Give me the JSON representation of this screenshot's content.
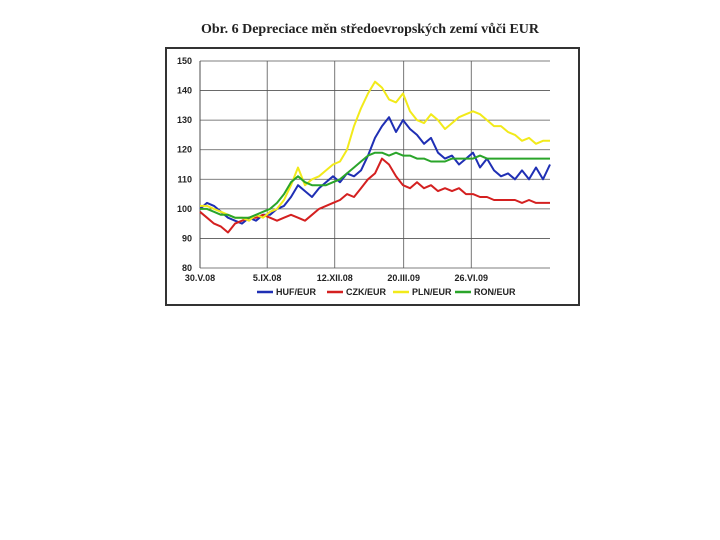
{
  "chart_data": {
    "type": "line",
    "title": "Obr. 6 Depreciace měn středoevropských zemí vůči EUR",
    "xlabel": "",
    "ylabel": "",
    "ylim": [
      80,
      150
    ],
    "yticks": [
      80,
      90,
      100,
      110,
      120,
      130,
      140,
      150
    ],
    "xlim": [
      0,
      100
    ],
    "xticks": [
      {
        "label": "30.V.08",
        "x": 0
      },
      {
        "label": "5.IX.08",
        "x": 19.2
      },
      {
        "label": "12.XII.08",
        "x": 38.5
      },
      {
        "label": "20.III.09",
        "x": 58.2
      },
      {
        "label": "26.VI.09",
        "x": 77.5
      }
    ],
    "grid": true,
    "legend_position": "bottom",
    "series": [
      {
        "name": "HUF/EUR",
        "color": "#1f2fb4",
        "x": [
          0,
          2,
          4,
          6,
          8,
          10,
          12,
          14,
          16,
          18,
          20,
          22,
          24,
          26,
          28,
          30,
          32,
          34,
          36,
          38,
          40,
          42,
          44,
          46,
          48,
          50,
          52,
          54,
          56,
          58,
          60,
          62,
          64,
          66,
          68,
          70,
          72,
          74,
          76,
          78,
          80,
          82,
          84,
          86,
          88,
          90,
          92,
          94,
          96,
          98,
          100
        ],
        "y": [
          100,
          102,
          101,
          99,
          97,
          96,
          95,
          97,
          96,
          98,
          98,
          100,
          101,
          104,
          108,
          106,
          104,
          107,
          109,
          111,
          109,
          112,
          111,
          113,
          118,
          124,
          128,
          131,
          126,
          130,
          127,
          125,
          122,
          124,
          119,
          117,
          118,
          115,
          117,
          119,
          114,
          117,
          113,
          111,
          112,
          110,
          113,
          110,
          114,
          110,
          115
        ]
      },
      {
        "name": "CZK/EUR",
        "color": "#d42020",
        "x": [
          0,
          2,
          4,
          6,
          8,
          10,
          12,
          14,
          16,
          18,
          20,
          22,
          24,
          26,
          28,
          30,
          32,
          34,
          36,
          38,
          40,
          42,
          44,
          46,
          48,
          50,
          52,
          54,
          56,
          58,
          60,
          62,
          64,
          66,
          68,
          70,
          72,
          74,
          76,
          78,
          80,
          82,
          84,
          86,
          88,
          90,
          92,
          94,
          96,
          98,
          100
        ],
        "y": [
          99,
          97,
          95,
          94,
          92,
          95,
          96,
          97,
          97,
          98,
          97,
          96,
          97,
          98,
          97,
          96,
          98,
          100,
          101,
          102,
          103,
          105,
          104,
          107,
          110,
          112,
          117,
          115,
          111,
          108,
          107,
          109,
          107,
          108,
          106,
          107,
          106,
          107,
          105,
          105,
          104,
          104,
          103,
          103,
          103,
          103,
          102,
          103,
          102,
          102,
          102
        ]
      },
      {
        "name": "PLN/EUR",
        "color": "#f2ea1a",
        "x": [
          0,
          2,
          4,
          6,
          8,
          10,
          12,
          14,
          16,
          18,
          20,
          22,
          24,
          26,
          28,
          30,
          32,
          34,
          36,
          38,
          40,
          42,
          44,
          46,
          48,
          50,
          52,
          54,
          56,
          58,
          60,
          62,
          64,
          66,
          68,
          70,
          72,
          74,
          76,
          78,
          80,
          82,
          84,
          86,
          88,
          90,
          92,
          94,
          96,
          98,
          100
        ],
        "y": [
          101,
          101,
          100,
          99,
          98,
          97,
          97,
          96,
          98,
          97,
          99,
          100,
          103,
          108,
          114,
          108,
          110,
          111,
          113,
          115,
          116,
          120,
          128,
          134,
          139,
          143,
          141,
          137,
          136,
          139,
          133,
          130,
          129,
          132,
          130,
          127,
          129,
          131,
          132,
          133,
          132,
          130,
          128,
          128,
          126,
          125,
          123,
          124,
          122,
          123,
          123
        ]
      },
      {
        "name": "RON/EUR",
        "color": "#2aa52a",
        "x": [
          0,
          2,
          4,
          6,
          8,
          10,
          12,
          14,
          16,
          18,
          20,
          22,
          24,
          26,
          28,
          30,
          32,
          34,
          36,
          38,
          40,
          42,
          44,
          46,
          48,
          50,
          52,
          54,
          56,
          58,
          60,
          62,
          64,
          66,
          68,
          70,
          72,
          74,
          76,
          78,
          80,
          82,
          84,
          86,
          88,
          90,
          92,
          94,
          96,
          98,
          100
        ],
        "y": [
          100,
          100,
          99,
          98,
          98,
          97,
          97,
          97,
          98,
          99,
          100,
          102,
          105,
          109,
          111,
          109,
          108,
          108,
          108,
          109,
          110,
          112,
          114,
          116,
          118,
          119,
          119,
          118,
          119,
          118,
          118,
          117,
          117,
          116,
          116,
          116,
          117,
          117,
          117,
          117,
          118,
          117,
          117,
          117,
          117,
          117,
          117,
          117,
          117,
          117,
          117
        ]
      }
    ]
  }
}
